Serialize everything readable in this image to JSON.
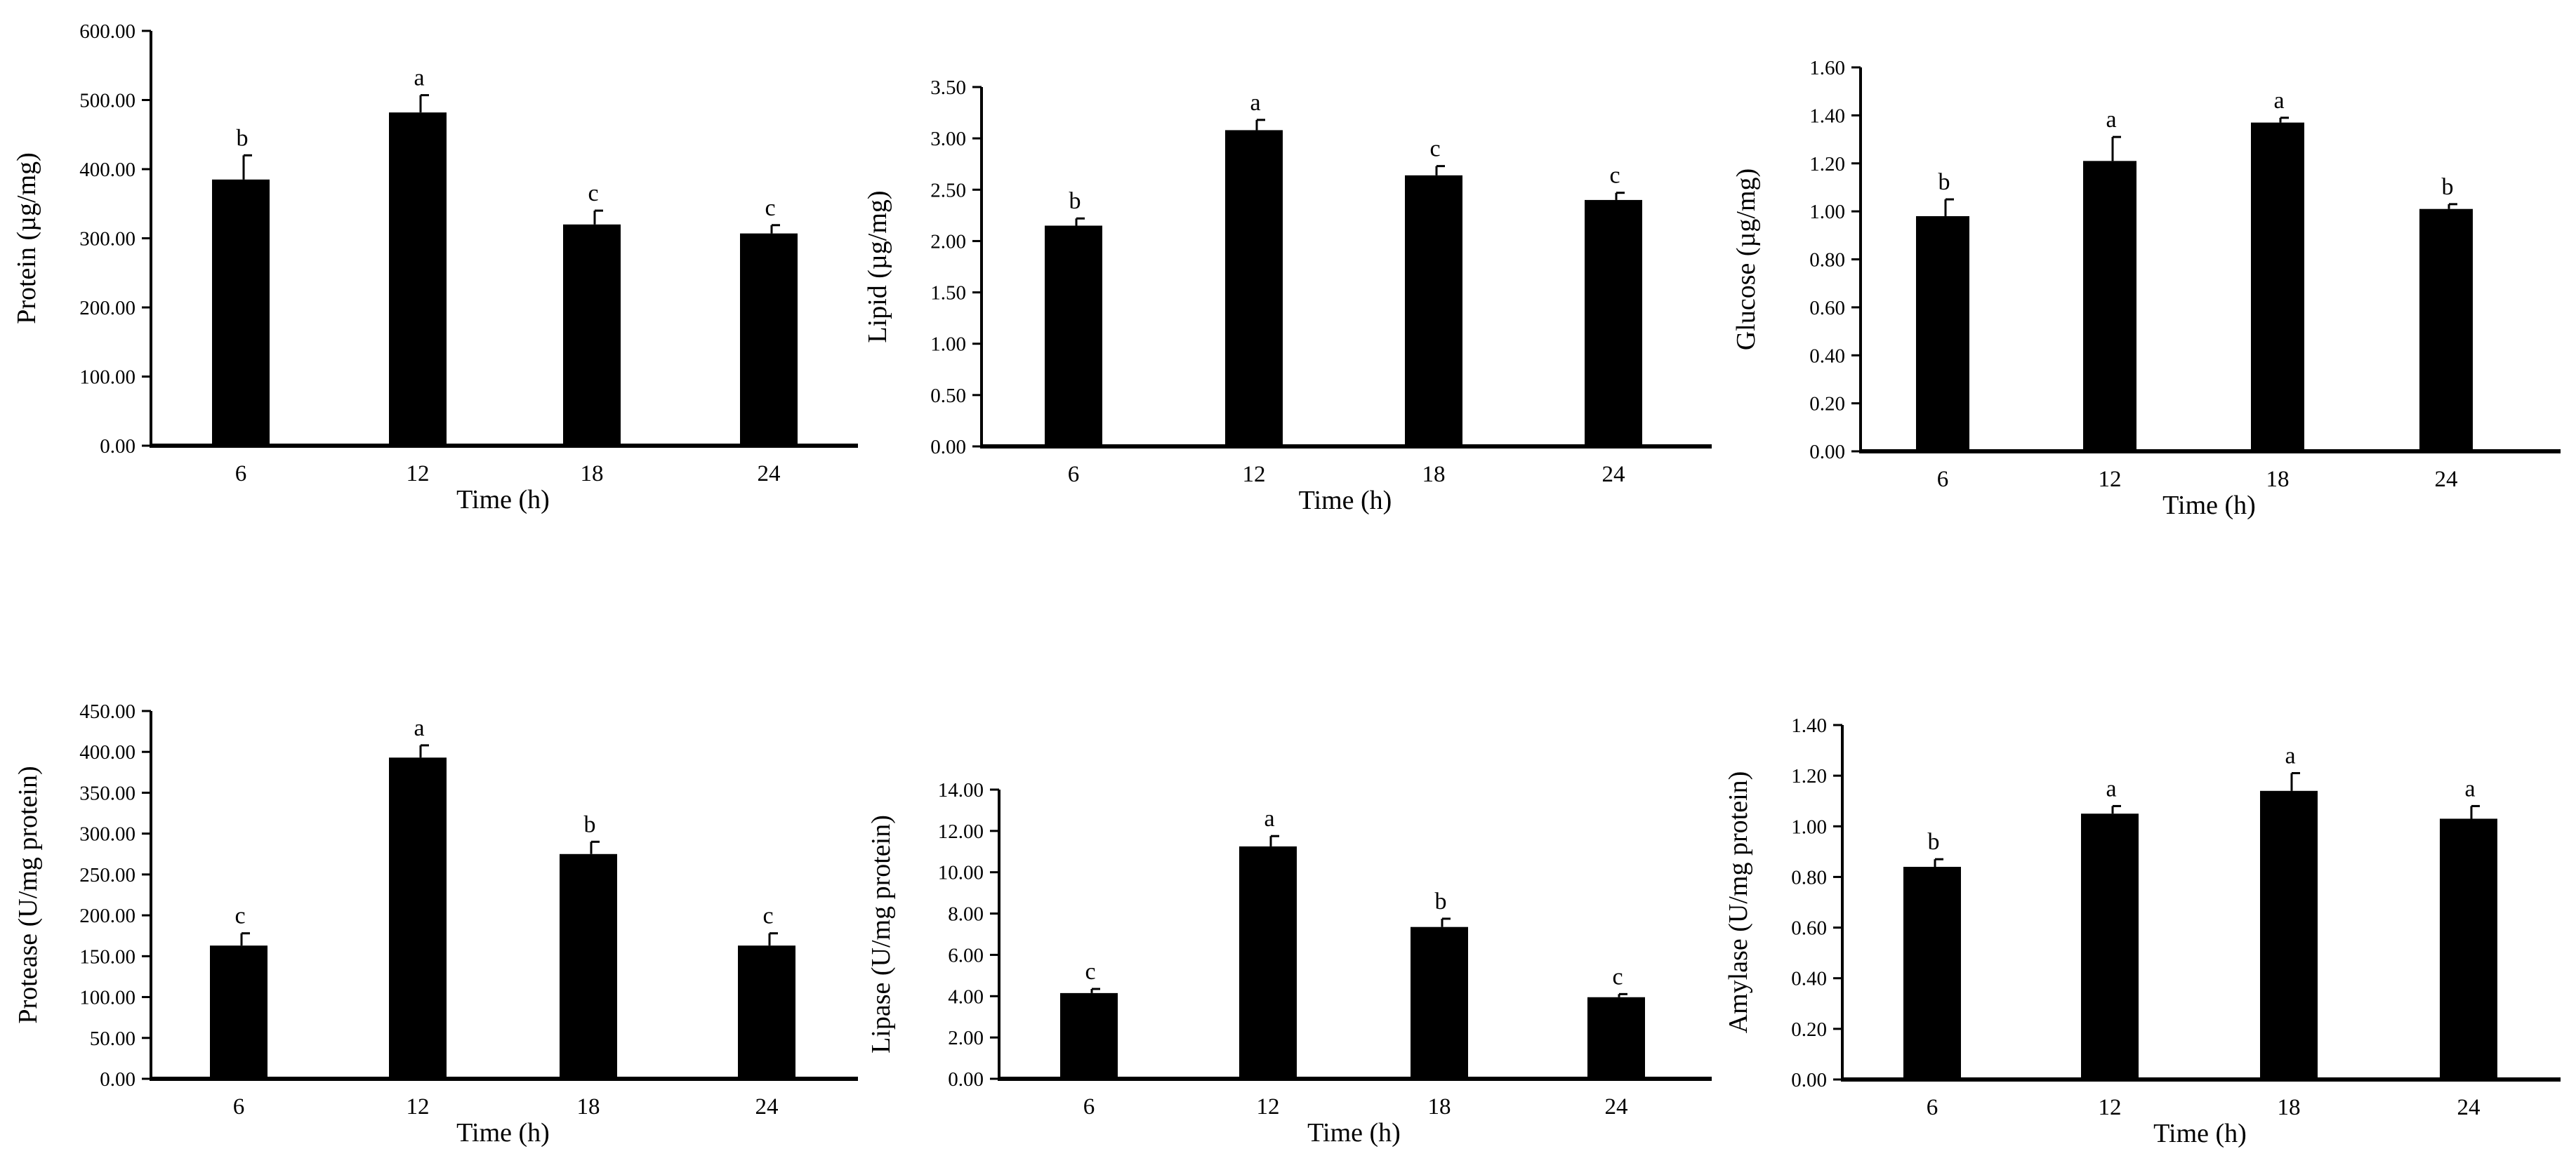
{
  "colors": {
    "bar": "#000000",
    "axis": "#000000",
    "background": "#ffffff"
  },
  "chart_data": [
    {
      "type": "bar",
      "categories": [
        "6",
        "12",
        "18",
        "24"
      ],
      "values": [
        385,
        482,
        320,
        307
      ],
      "errors": [
        35,
        25,
        20,
        12
      ],
      "significance": [
        "b",
        "a",
        "c",
        "c"
      ],
      "xlabel": "Time (h)",
      "ylabel": "Protein (µg/mg)",
      "ylim": [
        0,
        600
      ],
      "yticks": [
        "0.00",
        "100.00",
        "200.00",
        "300.00",
        "400.00",
        "500.00",
        "600.00"
      ],
      "grid": false
    },
    {
      "type": "bar",
      "categories": [
        "6",
        "12",
        "18",
        "24"
      ],
      "values": [
        2.15,
        3.08,
        2.64,
        2.4
      ],
      "errors": [
        0.07,
        0.1,
        0.09,
        0.07
      ],
      "significance": [
        "b",
        "a",
        "c",
        "c"
      ],
      "xlabel": "Time (h)",
      "ylabel": "Lipid (µg/mg)",
      "ylim": [
        0,
        3.5
      ],
      "yticks": [
        "0.00",
        "0.50",
        "1.00",
        "1.50",
        "2.00",
        "2.50",
        "3.00",
        "3.50"
      ],
      "grid": false
    },
    {
      "type": "bar",
      "categories": [
        "6",
        "12",
        "18",
        "24"
      ],
      "values": [
        0.98,
        1.21,
        1.37,
        1.01
      ],
      "errors": [
        0.07,
        0.1,
        0.02,
        0.02
      ],
      "significance": [
        "b",
        "a",
        "a",
        "b"
      ],
      "xlabel": "Time (h)",
      "ylabel": "Glucose (µg/mg)",
      "ylim": [
        0,
        1.6
      ],
      "yticks": [
        "0.00",
        "0.20",
        "0.40",
        "0.60",
        "0.80",
        "1.00",
        "1.20",
        "1.40",
        "1.60"
      ],
      "grid": false
    },
    {
      "type": "bar",
      "categories": [
        "6",
        "12",
        "18",
        "24"
      ],
      "values": [
        163,
        393,
        275,
        163
      ],
      "errors": [
        15,
        15,
        15,
        15
      ],
      "significance": [
        "c",
        "a",
        "b",
        "c"
      ],
      "xlabel": "Time (h)",
      "ylabel": "Protease (U/mg protein)",
      "ylim": [
        0,
        450
      ],
      "yticks": [
        "0.00",
        "50.00",
        "100.00",
        "150.00",
        "200.00",
        "250.00",
        "300.00",
        "350.00",
        "400.00",
        "450.00"
      ],
      "grid": false
    },
    {
      "type": "bar",
      "categories": [
        "6",
        "12",
        "18",
        "24"
      ],
      "values": [
        4.15,
        11.25,
        7.35,
        3.95
      ],
      "errors": [
        0.2,
        0.5,
        0.4,
        0.15
      ],
      "significance": [
        "c",
        "a",
        "b",
        "c"
      ],
      "xlabel": "Time (h)",
      "ylabel": "Lipase (U/mg protein)",
      "ylim": [
        0,
        14
      ],
      "yticks": [
        "0.00",
        "2.00",
        "4.00",
        "6.00",
        "8.00",
        "10.00",
        "12.00",
        "14.00"
      ],
      "grid": false
    },
    {
      "type": "bar",
      "categories": [
        "6",
        "12",
        "18",
        "24"
      ],
      "values": [
        0.84,
        1.05,
        1.14,
        1.03
      ],
      "errors": [
        0.03,
        0.03,
        0.07,
        0.05
      ],
      "significance": [
        "b",
        "a",
        "a",
        "a"
      ],
      "xlabel": "Time (h)",
      "ylabel": "Amylase (U/mg protein)",
      "ylim": [
        0,
        1.4
      ],
      "yticks": [
        "0.00",
        "0.20",
        "0.40",
        "0.60",
        "0.80",
        "1.00",
        "1.20",
        "1.40"
      ],
      "grid": false
    }
  ]
}
